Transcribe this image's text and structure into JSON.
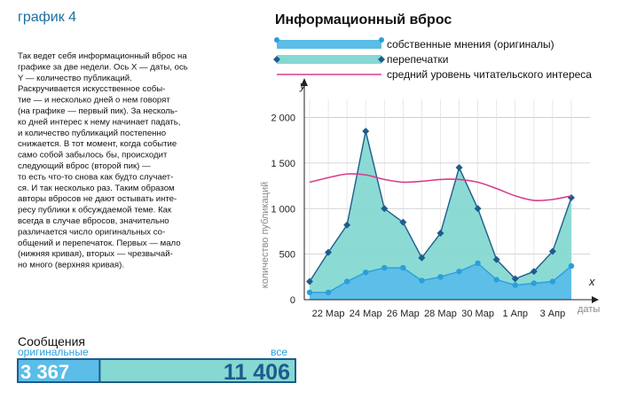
{
  "header": "график 4",
  "text": [
    "Так ведет себя информационный вброс на",
    "графике за две недели. Ось X — даты, ось",
    "Y — количество публикаций.",
    "Раскручивается искусственное собы-",
    "тие — и несколько дней о нем говорят",
    "(на графике — первый пик). За несколь-",
    "ко дней интерес к нему начинает падать,",
    "и количество публикаций постепенно",
    "снижается. В тот момент, когда событие",
    "само собой забылось бы, происходит",
    "следующий вброс (второй пик) —",
    "то есть что-то снова как будто случает-",
    "ся. И так несколько раз. Таким образом",
    "авторы вбросов не дают остывать инте-",
    "ресу публики к обсуждаемой теме. Как",
    "всегда в случае вбросов, значительно",
    "различается число оригинальных со-",
    "общений и перепечаток. Первых — мало",
    "(нижняя кривая), вторых — чрезвычай-",
    "но много (верхняя кривая)."
  ],
  "chart_data": {
    "type": "area",
    "title": "Информационный вброс",
    "y_label": "y",
    "x_label": "x",
    "y_axis_title": "количество публикаций",
    "x_axis_title": "даты",
    "categories": [
      null,
      "22 Мар",
      null,
      "24 Мар",
      null,
      "26 Мар",
      null,
      "28 Мар",
      null,
      "30 Мар",
      null,
      "1 Апр",
      null,
      "3 Апр",
      null
    ],
    "ylim": [
      0,
      2200
    ],
    "yticks": [
      0,
      500,
      {
        "value": 1000,
        "label": "1 000"
      },
      {
        "value": 1500,
        "label": "1 500"
      },
      {
        "value": 2000,
        "label": "2 000"
      }
    ],
    "grid": true,
    "series": [
      {
        "name": "собственные мнения (оригиналы)",
        "color": "#5bbde8",
        "line_color": "#2a9fdc",
        "marker": "circle",
        "values": [
          80,
          80,
          200,
          300,
          350,
          350,
          210,
          250,
          310,
          400,
          220,
          160,
          180,
          200,
          370
        ]
      },
      {
        "name": "перепечатки",
        "color": "#86d8d2",
        "line_color": "#1d5c8c",
        "marker": "diamond",
        "values": [
          200,
          520,
          820,
          1850,
          1000,
          850,
          460,
          730,
          1450,
          1000,
          440,
          230,
          310,
          530,
          1120
        ]
      },
      {
        "name": "средний уровень читательского интереса",
        "color": "#d83c8c",
        "marker": "none",
        "values": [
          1290,
          1340,
          1380,
          1370,
          1320,
          1290,
          1300,
          1320,
          1320,
          1290,
          1220,
          1140,
          1090,
          1100,
          1140
        ]
      }
    ]
  },
  "messages": {
    "title": "Сообщения",
    "original_name": "оригинальные",
    "all_name": "все",
    "original": 3367,
    "all": 11406,
    "value_labels": {
      "original": "3 367",
      "all": "11 406"
    }
  }
}
